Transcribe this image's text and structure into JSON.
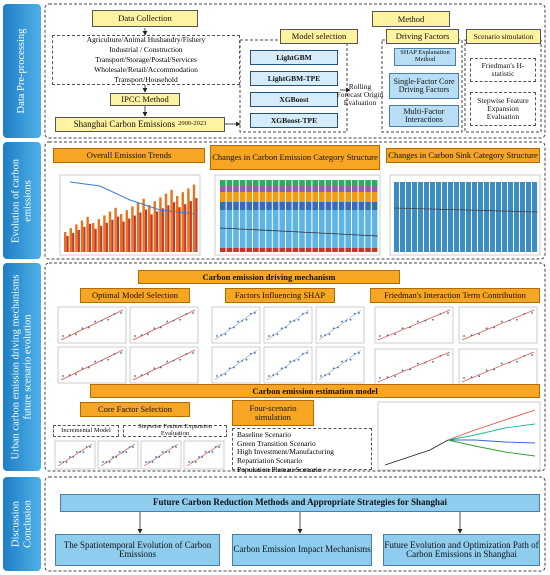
{
  "sidebar": [
    "Data Pre-processing",
    "Evolution of carbon emissions",
    "Urban carbon emission driving mechanisms future scenario evolution",
    "Discussion Conclusion"
  ],
  "preprocessing": {
    "data_collection": "Data Collection",
    "sectors": [
      "Agriculture/Animal Husbandry/Fishery",
      "Industrial / Construction",
      "Transport/Storage/Postal/Services",
      "Wholesale/Retail/Accommodation",
      "Transport/Household"
    ],
    "ipcc": "IPCC Method",
    "output": "Shanghai Carbon Emissions",
    "output_years": "2000-2023",
    "method": "Method",
    "model_selection": "Model selection",
    "models": [
      "LightGBM",
      "LightGBM-TPE",
      "XGBoost",
      "XGBoost-TPE"
    ],
    "evaluation": "Rolling Forecast Origin Evaluation",
    "driving_factors": "Driving Factors",
    "shap": "SHAP Explanation Method",
    "single": "Single-Factor Core Driving Factors",
    "multi": "Multi-Factor Interactions",
    "scenario": "Scenario simulation",
    "friedman": "Friedman's H-statistic",
    "stepwise": "Stepwise Feature Expansion Evaluation"
  },
  "evolution": {
    "panels": [
      "Overall Emission Trends",
      "Changes in Carbon Emission Category Structure",
      "Changes in Carbon Sink Category Structure"
    ]
  },
  "mechanism": {
    "title": "Carbon emission driving mechanism",
    "panels": [
      "Optimal Model Selection",
      "Factors Influencing SHAP",
      "Friedman's Interaction Term Contribution"
    ],
    "estimation": "Carbon emission estimation model",
    "core": "Core Factor Selection",
    "incremental": "Incremental Model",
    "stepwise": "Stepwise Feature Expansion Evaluation",
    "four": "Four-scenario simulation",
    "scenarios": [
      "Baseline Scenario",
      "Green Transition Scenario",
      "High Investment/Manufacturing Repatriation Scenario",
      "Population Plateau Scenario"
    ]
  },
  "conclusion": {
    "title": "Future Carbon Reduction Methods and Appropriate Strategies for Shanghai",
    "items": [
      "The Spatiotemporal Evolution of Carbon Emissions",
      "Carbon Emission Impact Mechanisms",
      "Future Evolution and Optimization Path of Carbon Emissions in Shanghai"
    ]
  }
}
